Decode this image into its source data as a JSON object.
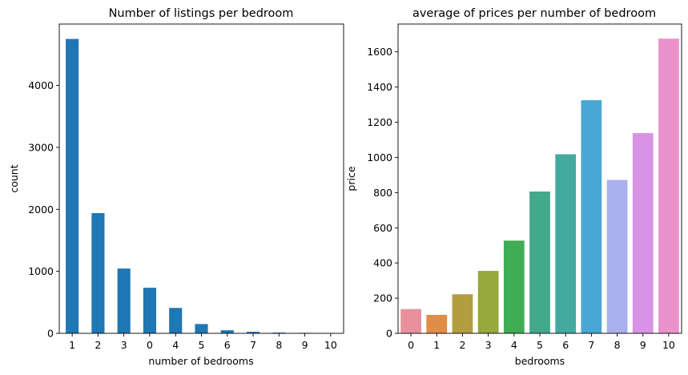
{
  "chart_data": [
    {
      "type": "bar",
      "title": "Number of listings per bedroom",
      "xlabel": "number of bedrooms",
      "ylabel": "count",
      "categories": [
        "1",
        "2",
        "3",
        "0",
        "4",
        "5",
        "6",
        "7",
        "8",
        "9",
        "10"
      ],
      "values": [
        4750,
        1940,
        1045,
        735,
        410,
        150,
        50,
        25,
        12,
        8,
        3
      ],
      "ylim": [
        0,
        4990
      ],
      "yticks": [
        0,
        1000,
        2000,
        3000,
        4000
      ],
      "grid": false,
      "colors": [
        "#1f77b4"
      ]
    },
    {
      "type": "bar",
      "title": "average of prices per number of bedroom",
      "xlabel": "bedrooms",
      "ylabel": "price",
      "categories": [
        "0",
        "1",
        "2",
        "3",
        "4",
        "5",
        "6",
        "7",
        "8",
        "9",
        "10"
      ],
      "values": [
        138,
        105,
        222,
        355,
        527,
        806,
        1018,
        1325,
        872,
        1138,
        1675
      ],
      "ylim": [
        0,
        1758
      ],
      "yticks": [
        0,
        200,
        400,
        600,
        800,
        1000,
        1200,
        1400,
        1600
      ],
      "grid": false,
      "colors": [
        "#e8919c",
        "#e08d48",
        "#b29d40",
        "#97a83c",
        "#3ead53",
        "#42a98a",
        "#44aaa0",
        "#4aa6d4",
        "#aab0ec",
        "#d892e6",
        "#e992cc"
      ]
    }
  ]
}
